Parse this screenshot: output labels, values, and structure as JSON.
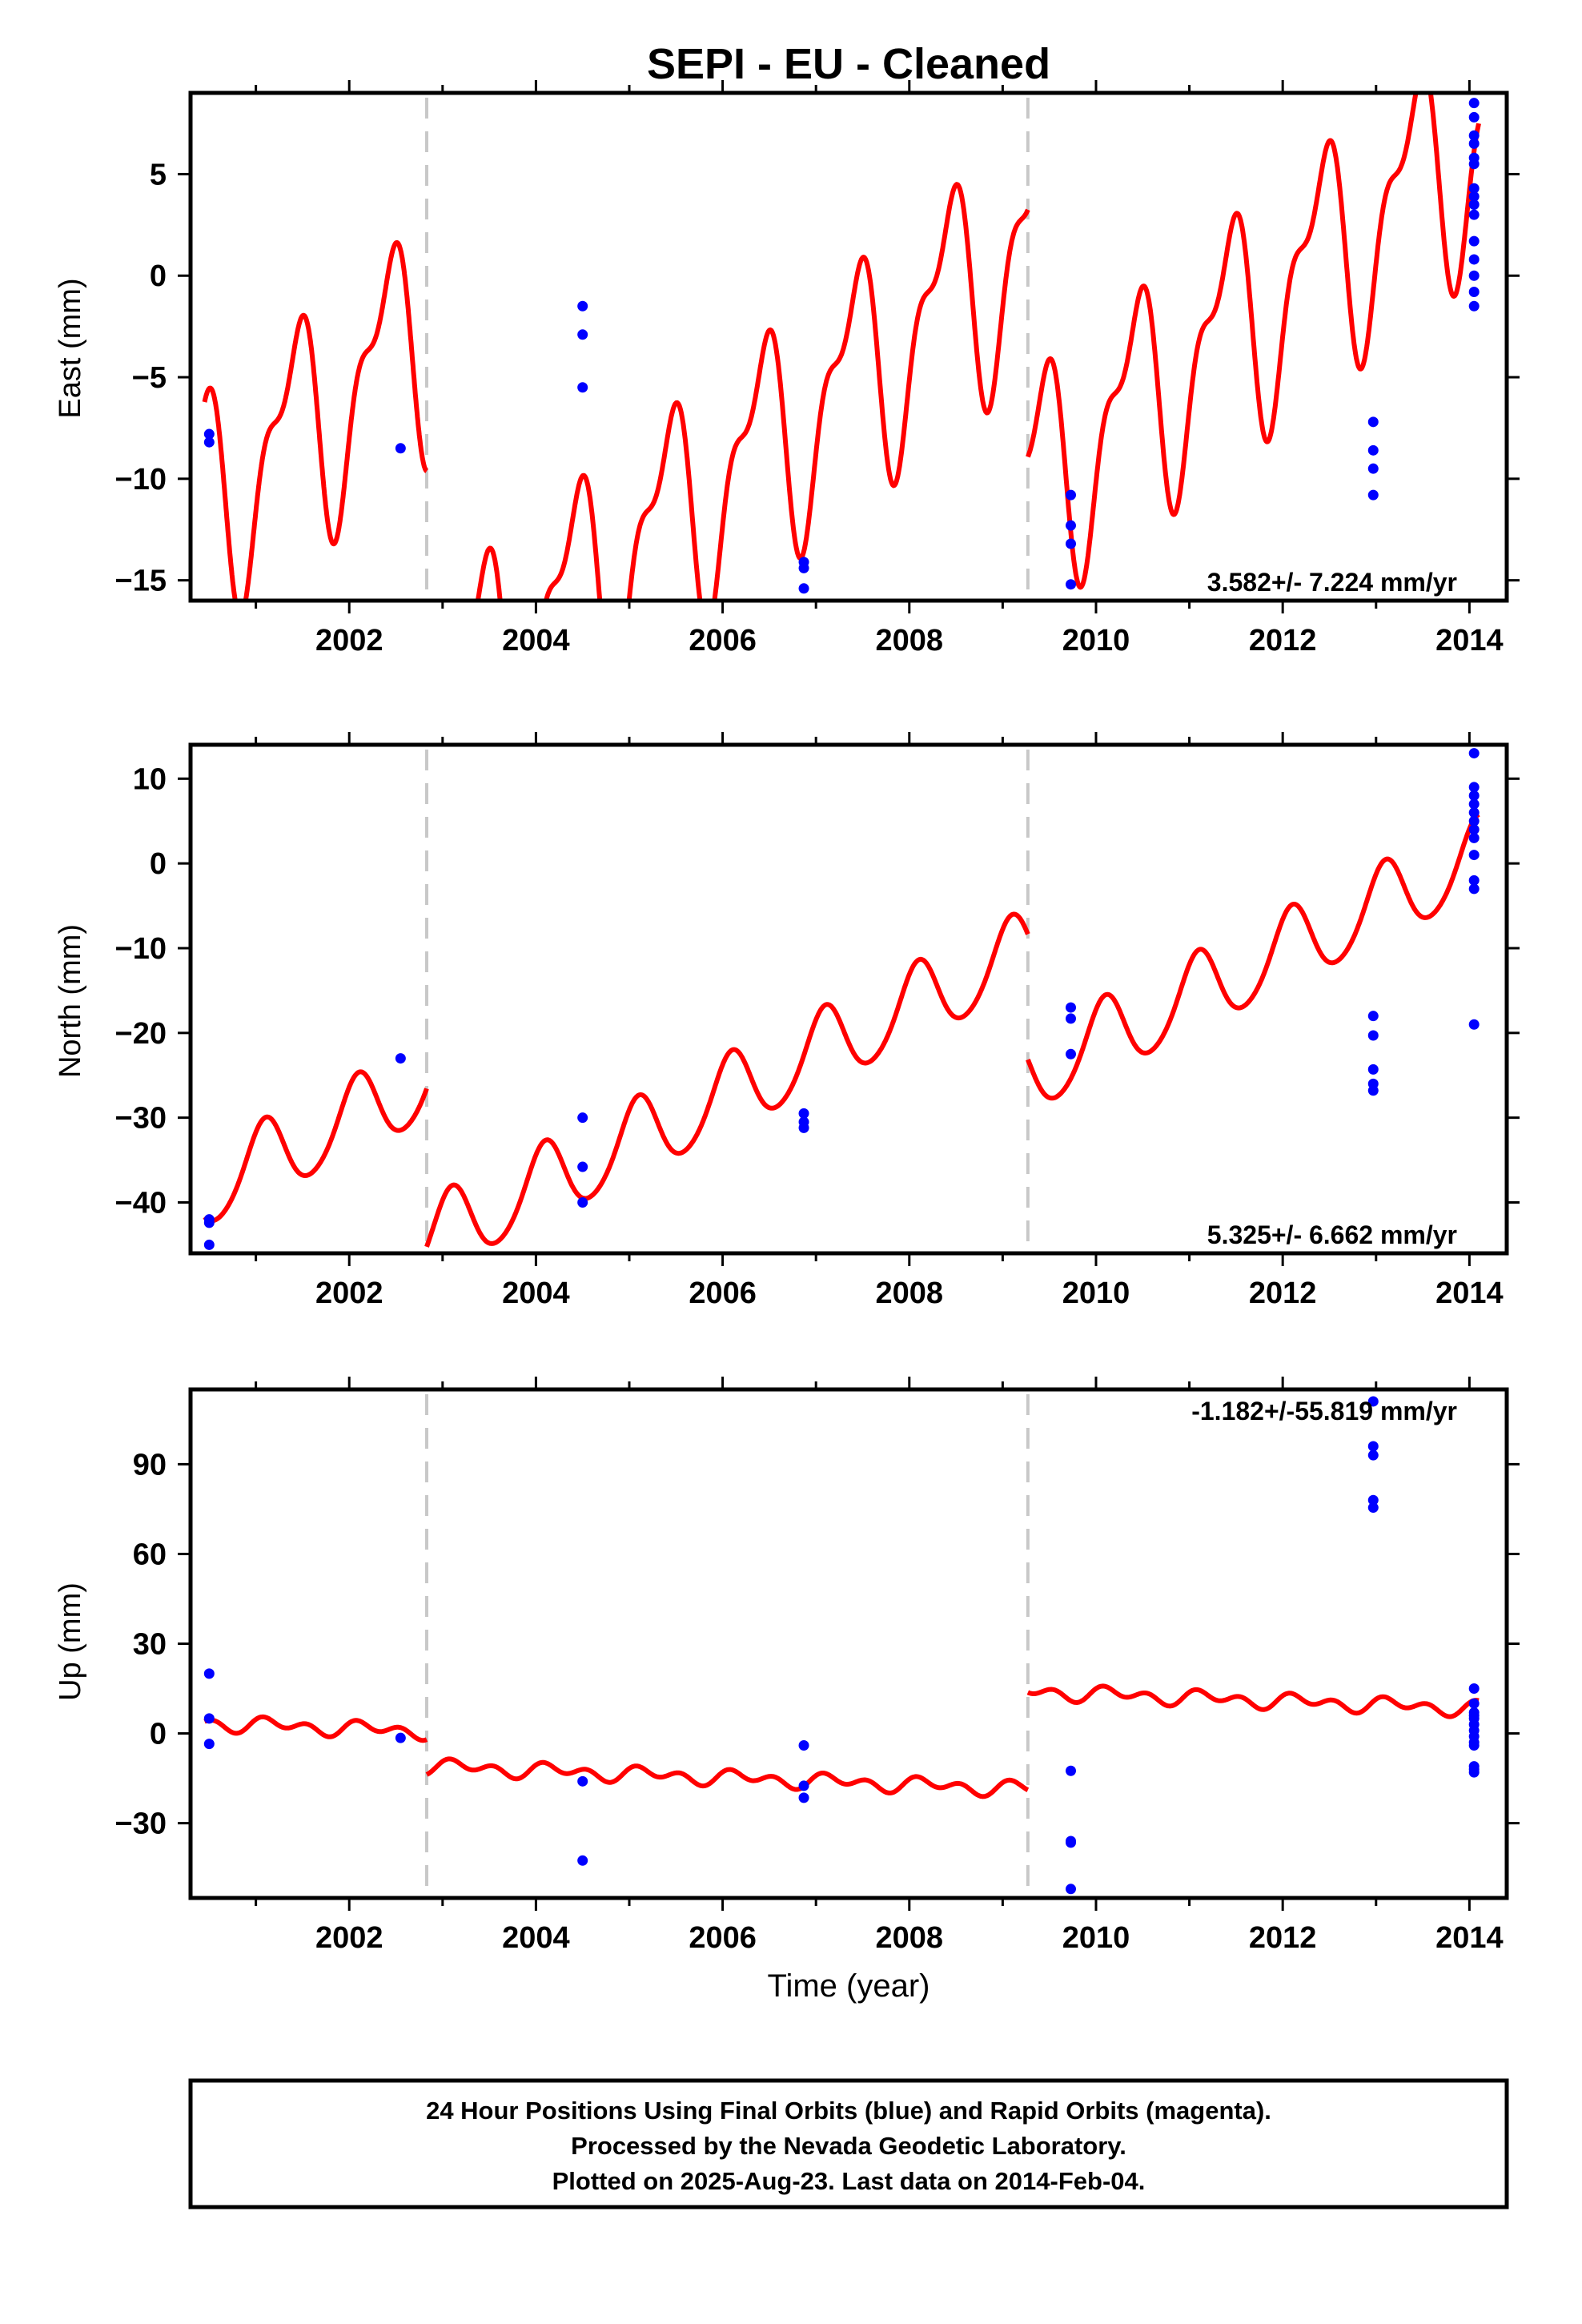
{
  "title": "SEPI  - EU - Cleaned",
  "xlabel": "Time (year)",
  "footer": {
    "line1": "24 Hour Positions Using Final Orbits (blue) and Rapid Orbits (magenta).",
    "line2": "Processed by the Nevada Geodetic Laboratory.",
    "line3": "Plotted on 2025-Aug-23. Last data on 2014-Feb-04."
  },
  "colors": {
    "model": "#ff0000",
    "final_orbits": "#0000ff",
    "offset_line": "#c8c8c8"
  },
  "chart_data": [
    {
      "type": "scatter",
      "name": "east",
      "ylabel": "East (mm)",
      "rate_label": "3.582+/- 7.224 mm/yr",
      "xlim": [
        2000.3,
        2014.4
      ],
      "ylim": [
        -16,
        9
      ],
      "xticks": [
        "2002",
        "2004",
        "2006",
        "2008",
        "2010",
        "2012",
        "2014"
      ],
      "yticks": [
        "5",
        "0",
        "−5",
        "−10",
        "−15"
      ],
      "offsets": [
        2002.83,
        2009.27
      ],
      "model": {
        "segments": [
          {
            "x0": 2000.45,
            "x1": 2002.83,
            "y0": -11.3,
            "rate": 3.582,
            "ann_amp": 5.0,
            "ann_phase": -0.9,
            "semi_amp": 2.3,
            "semi_phase": 0.8
          },
          {
            "x0": 2002.83,
            "x1": 2009.27,
            "y0": -21.4,
            "rate": 3.582,
            "ann_amp": 5.0,
            "ann_phase": -0.9,
            "semi_amp": 2.3,
            "semi_phase": 0.8
          },
          {
            "x0": 2009.27,
            "x1": 2014.1,
            "y0": -10.5,
            "rate": 3.582,
            "ann_amp": 5.0,
            "ann_phase": -0.9,
            "semi_amp": 2.3,
            "semi_phase": 0.8
          }
        ]
      },
      "points": [
        [
          2000.5,
          -7.8
        ],
        [
          2000.5,
          -8.2
        ],
        [
          2002.55,
          -8.5
        ],
        [
          2004.5,
          -1.5
        ],
        [
          2004.5,
          -2.9
        ],
        [
          2004.5,
          -5.5
        ],
        [
          2006.87,
          -14.1
        ],
        [
          2006.87,
          -14.4
        ],
        [
          2006.87,
          -15.4
        ],
        [
          2009.73,
          -10.8
        ],
        [
          2009.73,
          -12.3
        ],
        [
          2009.73,
          -13.2
        ],
        [
          2009.73,
          -15.2
        ],
        [
          2012.97,
          -7.2
        ],
        [
          2012.97,
          -8.6
        ],
        [
          2012.97,
          -9.5
        ],
        [
          2012.97,
          -10.8
        ],
        [
          2014.05,
          8.5
        ],
        [
          2014.05,
          7.8
        ],
        [
          2014.05,
          6.9
        ],
        [
          2014.05,
          6.5
        ],
        [
          2014.05,
          5.8
        ],
        [
          2014.05,
          5.5
        ],
        [
          2014.05,
          4.3
        ],
        [
          2014.05,
          3.9
        ],
        [
          2014.05,
          3.5
        ],
        [
          2014.05,
          3.0
        ],
        [
          2014.05,
          1.7
        ],
        [
          2014.05,
          0.8
        ],
        [
          2014.05,
          0.0
        ],
        [
          2014.05,
          -0.8
        ],
        [
          2014.05,
          -1.5
        ]
      ]
    },
    {
      "type": "scatter",
      "name": "north",
      "ylabel": "North (mm)",
      "rate_label": "5.325+/- 6.662 mm/yr",
      "xlim": [
        2000.3,
        2014.4
      ],
      "ylim": [
        -46,
        14
      ],
      "xticks": [
        "2002",
        "2004",
        "2006",
        "2008",
        "2010",
        "2012",
        "2014"
      ],
      "yticks": [
        "10",
        "0",
        "−10",
        "−20",
        "−30",
        "−40"
      ],
      "offsets": [
        2002.83,
        2009.27
      ],
      "model": {
        "segments": [
          {
            "x0": 2000.45,
            "x1": 2002.83,
            "y0": -38.5,
            "rate": 5.325,
            "ann_amp": 4.6,
            "ann_phase": 1.0,
            "semi_amp": 0.5,
            "semi_phase": 0.0
          },
          {
            "x0": 2002.83,
            "x1": 2009.27,
            "y0": -44.5,
            "rate": 5.325,
            "ann_amp": 4.6,
            "ann_phase": 1.0,
            "semi_amp": 0.5,
            "semi_phase": 0.0
          },
          {
            "x0": 2009.27,
            "x1": 2014.1,
            "y0": -25.0,
            "rate": 5.325,
            "ann_amp": 4.6,
            "ann_phase": 1.0,
            "semi_amp": 0.5,
            "semi_phase": 0.0
          }
        ]
      },
      "points": [
        [
          2000.5,
          -42.0
        ],
        [
          2000.5,
          -42.4
        ],
        [
          2000.5,
          -45.0
        ],
        [
          2002.55,
          -23.0
        ],
        [
          2004.5,
          -30.0
        ],
        [
          2004.5,
          -35.8
        ],
        [
          2004.5,
          -40.0
        ],
        [
          2006.87,
          -29.5
        ],
        [
          2006.87,
          -30.5
        ],
        [
          2006.87,
          -31.2
        ],
        [
          2009.73,
          -17.0
        ],
        [
          2009.73,
          -18.3
        ],
        [
          2009.73,
          -22.5
        ],
        [
          2012.97,
          -18.0
        ],
        [
          2012.97,
          -20.3
        ],
        [
          2012.97,
          -24.3
        ],
        [
          2012.97,
          -26.0
        ],
        [
          2012.97,
          -26.8
        ],
        [
          2014.05,
          13.0
        ],
        [
          2014.05,
          9.0
        ],
        [
          2014.05,
          8.0
        ],
        [
          2014.05,
          7.0
        ],
        [
          2014.05,
          6.0
        ],
        [
          2014.05,
          5.0
        ],
        [
          2014.05,
          4.0
        ],
        [
          2014.05,
          3.0
        ],
        [
          2014.05,
          1.0
        ],
        [
          2014.05,
          -2.0
        ],
        [
          2014.05,
          -3.0
        ],
        [
          2014.05,
          -19.0
        ]
      ]
    },
    {
      "type": "scatter",
      "name": "up",
      "ylabel": "Up (mm)",
      "rate_label": "-1.182+/-55.819 mm/yr",
      "xlim": [
        2000.3,
        2014.4
      ],
      "ylim": [
        -55,
        115
      ],
      "xticks": [
        "2002",
        "2004",
        "2006",
        "2008",
        "2010",
        "2012",
        "2014"
      ],
      "yticks": [
        "90",
        "60",
        "30",
        "0",
        "−30"
      ],
      "offsets": [
        2002.83,
        2009.27
      ],
      "model": {
        "segments": [
          {
            "x0": 2000.45,
            "x1": 2002.83,
            "y0": 3.5,
            "rate": -1.182,
            "ann_amp": 1.5,
            "ann_phase": 0.3,
            "semi_amp": 1.8,
            "semi_phase": 0.9
          },
          {
            "x0": 2002.83,
            "x1": 2009.27,
            "y0": -11.0,
            "rate": -1.182,
            "ann_amp": 1.5,
            "ann_phase": 0.3,
            "semi_amp": 1.8,
            "semi_phase": 0.9
          },
          {
            "x0": 2009.27,
            "x1": 2014.1,
            "y0": 14.0,
            "rate": -1.182,
            "ann_amp": 1.5,
            "ann_phase": 0.3,
            "semi_amp": 1.8,
            "semi_phase": 0.9
          }
        ]
      },
      "points": [
        [
          2000.5,
          20.0
        ],
        [
          2000.5,
          5.0
        ],
        [
          2000.5,
          -3.5
        ],
        [
          2002.55,
          -1.5
        ],
        [
          2004.5,
          -16.0
        ],
        [
          2004.5,
          -42.5
        ],
        [
          2006.87,
          -4.0
        ],
        [
          2006.87,
          -17.5
        ],
        [
          2006.87,
          -21.5
        ],
        [
          2009.73,
          -12.5
        ],
        [
          2009.73,
          -36.0
        ],
        [
          2009.73,
          -36.5
        ],
        [
          2009.73,
          -52.0
        ],
        [
          2012.97,
          111.0
        ],
        [
          2012.97,
          96.0
        ],
        [
          2012.97,
          93.0
        ],
        [
          2012.97,
          78.0
        ],
        [
          2012.97,
          75.5
        ],
        [
          2014.05,
          15.0
        ],
        [
          2014.05,
          10.0
        ],
        [
          2014.05,
          7.0
        ],
        [
          2014.05,
          6.0
        ],
        [
          2014.05,
          5.0
        ],
        [
          2014.05,
          3.0
        ],
        [
          2014.05,
          1.0
        ],
        [
          2014.05,
          -1.0
        ],
        [
          2014.05,
          -3.0
        ],
        [
          2014.05,
          -4.0
        ],
        [
          2014.05,
          -11.0
        ],
        [
          2014.05,
          -12.0
        ],
        [
          2014.05,
          -13.0
        ]
      ]
    }
  ]
}
